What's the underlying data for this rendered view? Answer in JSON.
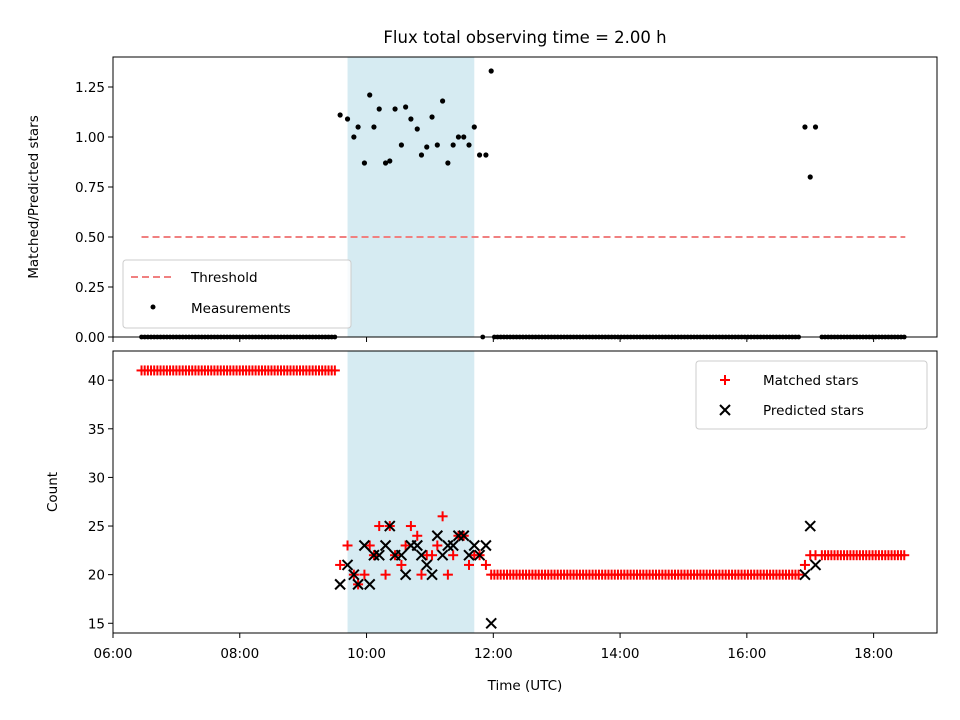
{
  "chart_data": [
    {
      "type": "scatter",
      "title": "Flux total observing time = 2.00 h",
      "ylabel": "Matched/Predicted stars",
      "xlabel": "",
      "ylim": [
        0,
        1.4
      ],
      "xlim": [
        "06:00",
        "19:00"
      ],
      "y_ticks": [
        "0.00",
        "0.25",
        "0.50",
        "0.75",
        "1.00",
        "1.25"
      ],
      "highlight_span": {
        "start": "09:42",
        "end": "11:42",
        "color": "#add8e6"
      },
      "legend": {
        "placement": "lower-left"
      },
      "series": [
        {
          "name": "Threshold",
          "kind": "line",
          "style": "dashed",
          "color": "#f08080",
          "x": [
            "06:27",
            "18:30"
          ],
          "y": [
            0.5,
            0.5
          ]
        },
        {
          "name": "Measurements",
          "kind": "points",
          "color": "#000000",
          "x": [
            "09:35",
            "09:42",
            "09:48",
            "09:52",
            "09:58",
            "10:03",
            "10:07",
            "10:12",
            "10:18",
            "10:22",
            "10:27",
            "10:33",
            "10:37",
            "10:42",
            "10:48",
            "10:52",
            "10:57",
            "11:02",
            "11:07",
            "11:12",
            "11:17",
            "11:22",
            "11:27",
            "11:32",
            "11:37",
            "11:42",
            "11:47",
            "11:53",
            "11:58",
            "16:55",
            "17:00",
            "17:05"
          ],
          "y": [
            1.11,
            1.09,
            1.0,
            1.05,
            0.87,
            1.21,
            1.05,
            1.14,
            0.87,
            0.88,
            1.14,
            0.96,
            1.15,
            1.09,
            1.04,
            0.91,
            0.95,
            1.1,
            0.96,
            1.18,
            0.87,
            0.96,
            1.0,
            1.0,
            0.96,
            1.05,
            0.91,
            0.91,
            1.33,
            1.05,
            0.8,
            1.05
          ]
        },
        {
          "name": "",
          "kind": "zero-points",
          "color": "#000000",
          "segments": [
            {
              "from": "06:27",
              "to": "09:30",
              "step_min": 3,
              "y": 0
            },
            {
              "from": "11:50",
              "to": "11:50",
              "step_min": 3,
              "y": 0
            },
            {
              "from": "12:01",
              "to": "16:50",
              "step_min": 3,
              "y": 0
            },
            {
              "from": "17:11",
              "to": "18:30",
              "step_min": 3,
              "y": 0
            }
          ]
        }
      ]
    },
    {
      "type": "scatter",
      "title": "",
      "ylabel": "Count",
      "xlabel": "Time (UTC)",
      "ylim": [
        14,
        43
      ],
      "xlim": [
        "06:00",
        "19:00"
      ],
      "y_ticks": [
        "15",
        "20",
        "25",
        "30",
        "35",
        "40"
      ],
      "x_ticks": [
        "06:00",
        "08:00",
        "10:00",
        "12:00",
        "14:00",
        "16:00",
        "18:00"
      ],
      "highlight_span": {
        "start": "09:42",
        "end": "11:42",
        "color": "#add8e6"
      },
      "legend": {
        "placement": "upper-right"
      },
      "series": [
        {
          "name": "Matched stars",
          "marker": "plus",
          "color": "#ff0000",
          "segments": [
            {
              "from": "06:27",
              "to": "09:30",
              "step_min": 3,
              "y": 41
            },
            {
              "from": "12:01",
              "to": "16:50",
              "step_min": 3,
              "y": 20
            },
            {
              "from": "17:11",
              "to": "18:30",
              "step_min": 3,
              "y": 22
            }
          ],
          "x": [
            "09:35",
            "09:42",
            "09:48",
            "09:52",
            "09:58",
            "10:03",
            "10:07",
            "10:12",
            "10:18",
            "10:22",
            "10:27",
            "10:33",
            "10:37",
            "10:42",
            "10:48",
            "10:52",
            "10:57",
            "11:02",
            "11:07",
            "11:12",
            "11:17",
            "11:22",
            "11:27",
            "11:32",
            "11:37",
            "11:42",
            "11:47",
            "11:53",
            "11:58",
            "16:55",
            "17:00",
            "17:05"
          ],
          "y": [
            21,
            23,
            20,
            19,
            20,
            23,
            22,
            25,
            20,
            25,
            22,
            21,
            23,
            25,
            24,
            20,
            22,
            22,
            23,
            26,
            20,
            22,
            24,
            24,
            21,
            22,
            22,
            21,
            20,
            21,
            22,
            22
          ]
        },
        {
          "name": "Predicted stars",
          "marker": "x",
          "color": "#000000",
          "x": [
            "09:35",
            "09:42",
            "09:48",
            "09:52",
            "09:58",
            "10:03",
            "10:07",
            "10:12",
            "10:18",
            "10:22",
            "10:27",
            "10:33",
            "10:37",
            "10:42",
            "10:48",
            "10:52",
            "10:57",
            "11:02",
            "11:07",
            "11:12",
            "11:17",
            "11:22",
            "11:27",
            "11:32",
            "11:37",
            "11:42",
            "11:47",
            "11:53",
            "11:58",
            "16:55",
            "17:00",
            "17:05"
          ],
          "y": [
            19,
            21,
            20,
            19,
            23,
            19,
            22,
            22,
            23,
            25,
            22,
            22,
            20,
            23,
            23,
            22,
            21,
            20,
            24,
            22,
            23,
            23,
            24,
            24,
            22,
            23,
            22,
            23,
            15,
            20,
            25,
            21
          ]
        }
      ]
    }
  ]
}
